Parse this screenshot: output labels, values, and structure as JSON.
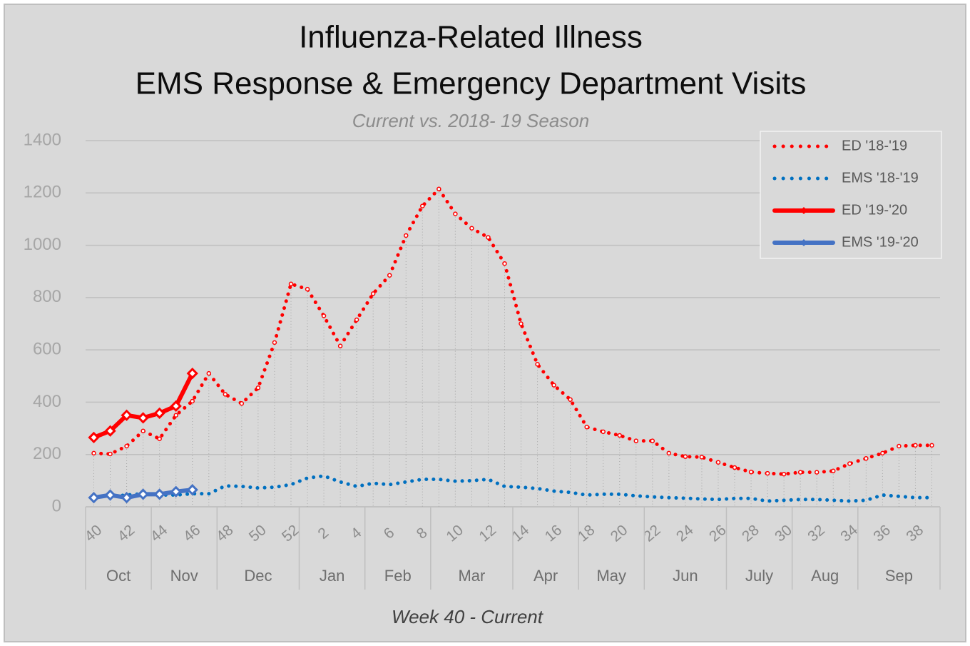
{
  "chart_data": {
    "type": "line",
    "title": "Influenza-Related Illness",
    "title_line2": "EMS Response & Emergency Department Visits",
    "subtitle": "Current vs. 2018- 19 Season",
    "x_label": "Week 40 - Current",
    "categories": [
      "40",
      null,
      "42",
      null,
      "44",
      null,
      "46",
      null,
      "48",
      null,
      "50",
      null,
      "52",
      null,
      "2",
      null,
      "4",
      null,
      "6",
      null,
      "8",
      null,
      "10",
      null,
      "12",
      null,
      "14",
      null,
      "16",
      null,
      "18",
      null,
      "20",
      null,
      "22",
      null,
      "24",
      null,
      "26",
      null,
      "28",
      null,
      "30",
      null,
      "32",
      null,
      "34",
      null,
      "36",
      null,
      "38",
      null
    ],
    "month_groups": [
      {
        "label": "Oct",
        "span": 4
      },
      {
        "label": "Nov",
        "span": 4
      },
      {
        "label": "Dec",
        "span": 5
      },
      {
        "label": "Jan",
        "span": 4
      },
      {
        "label": "Feb",
        "span": 4
      },
      {
        "label": "Mar",
        "span": 5
      },
      {
        "label": "Apr",
        "span": 4
      },
      {
        "label": "May",
        "span": 4
      },
      {
        "label": "Jun",
        "span": 5
      },
      {
        "label": "July",
        "span": 4
      },
      {
        "label": "Aug",
        "span": 4
      },
      {
        "label": "Sep",
        "span": 5
      }
    ],
    "series": [
      {
        "name": "ED '18-'19",
        "color": "#ff0000",
        "style": "dotted",
        "values": [
          205,
          202,
          232,
          290,
          260,
          350,
          404,
          510,
          430,
          395,
          455,
          628,
          852,
          832,
          730,
          615,
          715,
          815,
          885,
          1037,
          1150,
          1215,
          1120,
          1065,
          1030,
          930,
          700,
          545,
          465,
          410,
          305,
          287,
          273,
          252,
          252,
          205,
          192,
          190,
          170,
          150,
          133,
          128,
          125,
          132,
          132,
          137,
          165,
          185,
          205,
          232,
          235,
          235
        ]
      },
      {
        "name": "EMS '18-'19",
        "color": "#0070c0",
        "style": "dotted",
        "values": [
          40,
          40,
          45,
          50,
          45,
          45,
          50,
          50,
          80,
          78,
          72,
          75,
          85,
          110,
          118,
          95,
          78,
          90,
          85,
          95,
          105,
          105,
          98,
          100,
          105,
          78,
          75,
          70,
          60,
          55,
          45,
          48,
          48,
          42,
          38,
          35,
          33,
          30,
          28,
          32,
          32,
          22,
          25,
          28,
          28,
          25,
          22,
          25,
          45,
          40,
          35,
          35
        ]
      },
      {
        "name": "ED '19-'20",
        "color": "#ff0000",
        "style": "solid",
        "values": [
          265,
          290,
          350,
          340,
          358,
          385,
          510,
          null,
          null,
          null,
          null,
          null,
          null,
          null,
          null,
          null,
          null,
          null,
          null,
          null,
          null,
          null,
          null,
          null,
          null,
          null,
          null,
          null,
          null,
          null,
          null,
          null,
          null,
          null,
          null,
          null,
          null,
          null,
          null,
          null,
          null,
          null,
          null,
          null,
          null,
          null,
          null,
          null,
          null,
          null,
          null,
          null
        ]
      },
      {
        "name": "EMS '19-'20",
        "color": "#4472c4",
        "style": "solid",
        "values": [
          35,
          45,
          35,
          48,
          48,
          58,
          65,
          null,
          null,
          null,
          null,
          null,
          null,
          null,
          null,
          null,
          null,
          null,
          null,
          null,
          null,
          null,
          null,
          null,
          null,
          null,
          null,
          null,
          null,
          null,
          null,
          null,
          null,
          null,
          null,
          null,
          null,
          null,
          null,
          null,
          null,
          null,
          null,
          null,
          null,
          null,
          null,
          null,
          null,
          null,
          null,
          null
        ]
      }
    ],
    "ylim": [
      0,
      1400
    ],
    "yticks": [
      0,
      200,
      400,
      600,
      800,
      1000,
      1200,
      1400
    ],
    "grid": true,
    "legend": "top-right"
  }
}
